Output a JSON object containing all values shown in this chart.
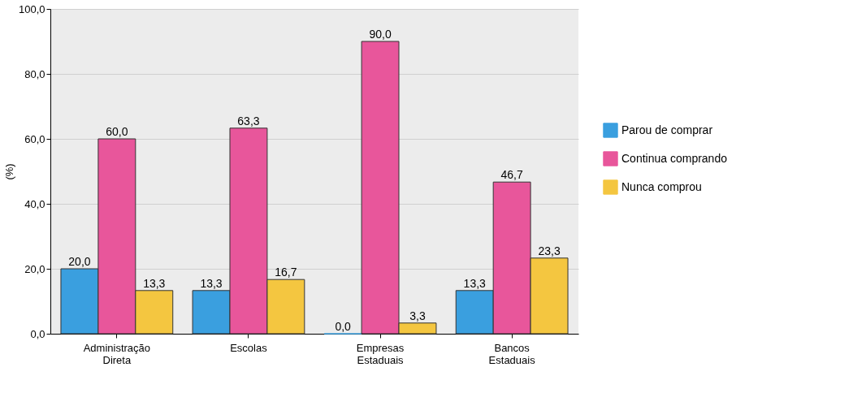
{
  "chart_data": {
    "type": "bar",
    "ylabel": "(%)",
    "categories": [
      "Administração Direta",
      "Escolas",
      "Empresas Estaduais",
      "Bancos Estaduais"
    ],
    "series": [
      {
        "name": "Parou de comprar",
        "color": "#3a9fdf",
        "values": [
          20.0,
          13.3,
          0.0,
          13.3
        ],
        "value_labels": [
          "20,0",
          "13,3",
          "0,0",
          "13,3"
        ]
      },
      {
        "name": "Continua comprando",
        "color": "#e8569b",
        "values": [
          60.0,
          63.3,
          90.0,
          46.7
        ],
        "value_labels": [
          "60,0",
          "63,3",
          "90,0",
          "46,7"
        ]
      },
      {
        "name": "Nunca comprou",
        "color": "#f4c640",
        "values": [
          13.3,
          16.7,
          3.3,
          23.3
        ],
        "value_labels": [
          "13,3",
          "16,7",
          "3,3",
          "23,3"
        ]
      }
    ],
    "ylim": [
      0,
      100
    ],
    "yticks": [
      {
        "value": 0,
        "label": "0,0"
      },
      {
        "value": 20,
        "label": "20,0"
      },
      {
        "value": 40,
        "label": "40,0"
      },
      {
        "value": 60,
        "label": "60,0"
      },
      {
        "value": 80,
        "label": "80,0"
      },
      {
        "value": 100,
        "label": "100,0"
      }
    ],
    "grid": "y",
    "legend": "right"
  }
}
